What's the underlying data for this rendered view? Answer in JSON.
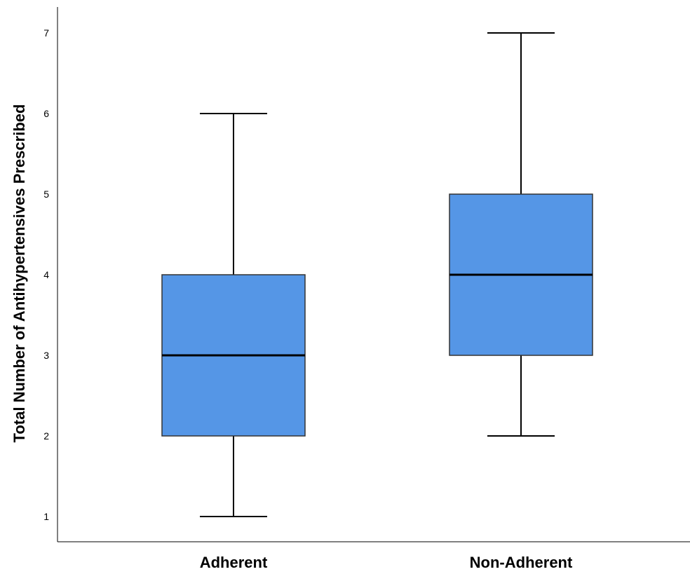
{
  "chart_data": {
    "type": "boxplot",
    "title": "",
    "xlabel": "",
    "ylabel": "Total Number of Antihypertensives Prescribed",
    "ylim": [
      0.7,
      7.35
    ],
    "yticks": [
      1,
      2,
      3,
      4,
      5,
      6,
      7
    ],
    "grid": false,
    "categories": [
      "Adherent",
      "Non-Adherent"
    ],
    "boxes": [
      {
        "category": "Adherent",
        "min": 1,
        "q1": 2,
        "median": 3,
        "q3": 4,
        "max": 6
      },
      {
        "category": "Non-Adherent",
        "min": 2,
        "q1": 3,
        "median": 4,
        "q3": 5,
        "max": 7
      }
    ],
    "box_color": "#5596E6"
  }
}
